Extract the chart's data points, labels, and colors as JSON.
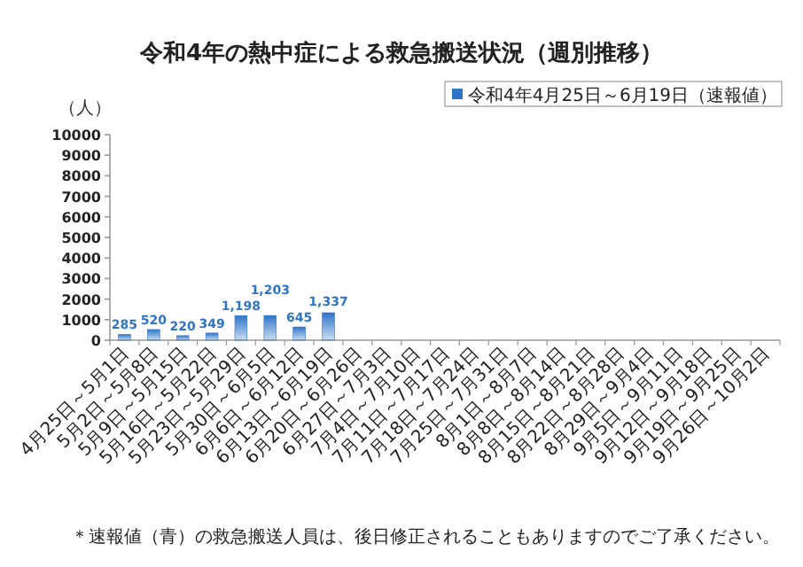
{
  "chart_data": {
    "type": "bar",
    "title": "令和4年の熱中症による救急搬送状況（週別推移）",
    "ylabel": "（人）",
    "categories": [
      "4月25日～5月1日",
      "5月2日～5月8日",
      "5月9日～5月15日",
      "5月16日～5月22日",
      "5月23日～5月29日",
      "5月30日～6月5日",
      "6月6日～6月12日",
      "6月13日～6月19日",
      "6月20日～6月26日",
      "6月27日～7月3日",
      "7月4日～7月10日",
      "7月11日～7月17日",
      "7月18日～7月24日",
      "7月25日～7月31日",
      "8月1日～8月7日",
      "8月8日～8月14日",
      "8月15日～8月21日",
      "8月22日～8月28日",
      "8月29日～9月4日",
      "9月5日～9月11日",
      "9月12日～9月18日",
      "9月19日～9月25日",
      "9月26日～10月2日"
    ],
    "series": [
      {
        "name": "令和4年4月25日～6月19日（速報値）",
        "color": "#2e75c8",
        "values": [
          285,
          520,
          220,
          349,
          1198,
          1203,
          645,
          1337,
          null,
          null,
          null,
          null,
          null,
          null,
          null,
          null,
          null,
          null,
          null,
          null,
          null,
          null,
          null
        ],
        "value_labels": [
          "285",
          "520",
          "220",
          "349",
          "1,198",
          "1,203",
          "645",
          "1,337",
          null,
          null,
          null,
          null,
          null,
          null,
          null,
          null,
          null,
          null,
          null,
          null,
          null,
          null,
          null
        ]
      }
    ],
    "ylim": [
      0,
      10000
    ],
    "yticks": [
      0,
      1000,
      2000,
      3000,
      4000,
      5000,
      6000,
      7000,
      8000,
      9000,
      10000
    ],
    "legend": "top right",
    "annotations": [
      "＊速報値（青）の救急搬送人員は、後日修正されることもありますのでご了承ください。"
    ]
  }
}
